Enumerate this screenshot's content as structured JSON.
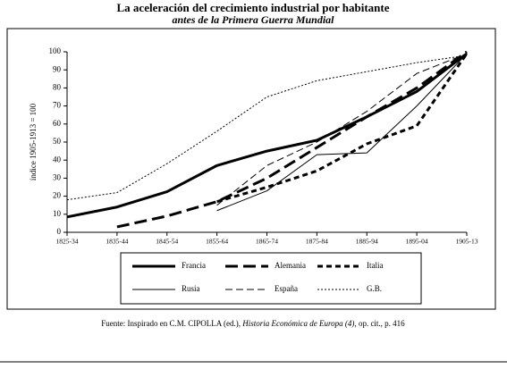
{
  "chart_data": {
    "type": "line",
    "title": "La aceleración del crecimiento industrial por habitante",
    "subtitle": "antes de la Primera Guerra Mundial",
    "y_label": "índice 1905-1913 = 100",
    "categories": [
      "1825-34",
      "1835-44",
      "1845-54",
      "1855-64",
      "1865-74",
      "1875-84",
      "1885-94",
      "1895-04",
      "1905-13"
    ],
    "ylim": [
      0,
      100
    ],
    "yticks": [
      0,
      10,
      20,
      30,
      40,
      50,
      60,
      70,
      80,
      90,
      100
    ],
    "series": [
      {
        "name": "Francia",
        "color": "#000000",
        "width": 3,
        "dash": "none",
        "values": [
          8.5,
          14,
          22.5,
          37,
          45,
          51,
          64,
          78,
          99
        ]
      },
      {
        "name": "Alemania",
        "color": "#000000",
        "width": 3,
        "dash": "14 6",
        "values": [
          null,
          3,
          9,
          17,
          30,
          47,
          64,
          80,
          100
        ]
      },
      {
        "name": "Italia",
        "color": "#000000",
        "width": 3,
        "dash": "6 4",
        "values": [
          null,
          null,
          null,
          17,
          25,
          34,
          49,
          59,
          99
        ]
      },
      {
        "name": "Rusia",
        "color": "#000000",
        "width": 1,
        "dash": "none",
        "values": [
          null,
          null,
          null,
          12,
          23,
          43,
          44,
          70,
          99
        ]
      },
      {
        "name": "España",
        "color": "#000000",
        "width": 1,
        "dash": "8 4",
        "values": [
          null,
          null,
          null,
          15,
          37,
          50,
          67,
          88,
          99
        ]
      },
      {
        "name": "G.B.",
        "color": "#000000",
        "width": 1,
        "dash": "2 2",
        "values": [
          18,
          22,
          38,
          56,
          75,
          84,
          89,
          94,
          98
        ]
      }
    ],
    "source": [
      "Fuente: Inspirado en C.M. CIPOLLA (ed.), ",
      "Historia Económica de Europa (4)",
      ", op. cit., p. 416"
    ]
  }
}
